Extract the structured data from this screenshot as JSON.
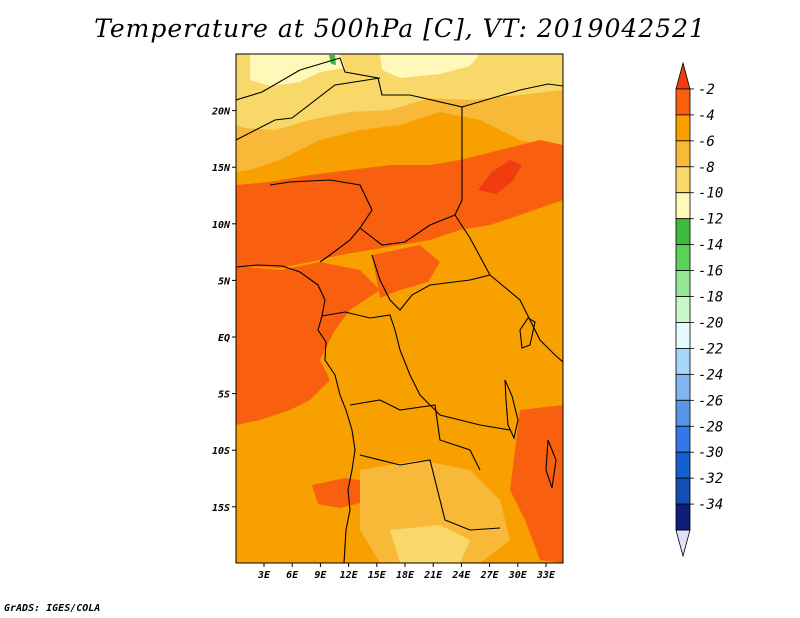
{
  "title": "Temperature at 500hPa [C], VT: 2019042521",
  "credit": "GrADS: IGES/COLA",
  "lat_ticks": [
    {
      "label": "20N",
      "value": 20
    },
    {
      "label": "15N",
      "value": 15
    },
    {
      "label": "10N",
      "value": 10
    },
    {
      "label": "5N",
      "value": 5
    },
    {
      "label": "EQ",
      "value": 0
    },
    {
      "label": "5S",
      "value": -5
    },
    {
      "label": "10S",
      "value": -10
    },
    {
      "label": "15S",
      "value": -15
    }
  ],
  "lon_ticks": [
    {
      "label": "3E",
      "value": 3
    },
    {
      "label": "6E",
      "value": 6
    },
    {
      "label": "9E",
      "value": 9
    },
    {
      "label": "12E",
      "value": 12
    },
    {
      "label": "15E",
      "value": 15
    },
    {
      "label": "18E",
      "value": 18
    },
    {
      "label": "21E",
      "value": 21
    },
    {
      "label": "24E",
      "value": 24
    },
    {
      "label": "27E",
      "value": 27
    },
    {
      "label": "30E",
      "value": 30
    },
    {
      "label": "33E",
      "value": 33
    }
  ],
  "colorbar": {
    "labels": [
      "-2",
      "-4",
      "-6",
      "-8",
      "-10",
      "-12",
      "-14",
      "-16",
      "-18",
      "-20",
      "-22",
      "-24",
      "-26",
      "-28",
      "-30",
      "-32",
      "-34"
    ],
    "colors": [
      "#f03c0f",
      "#f86010",
      "#f8a000",
      "#f8b838",
      "#f8d868",
      "#fff8b8",
      "#3cbc3c",
      "#5ad25a",
      "#96e696",
      "#c8f8c8",
      "#e6faff",
      "#a6d6f8",
      "#82b4f0",
      "#5a96e6",
      "#3478e6",
      "#1460d2",
      "#1450b4",
      "#0e1e78",
      "#e0e0f8"
    ]
  },
  "map_colors": {
    "m2": "#f03c0f",
    "m4": "#f86010",
    "m6": "#f8a000",
    "m8": "#f8b838",
    "m10": "#f8d868",
    "m12": "#fff8b8",
    "m14": "#3cbc3c"
  }
}
